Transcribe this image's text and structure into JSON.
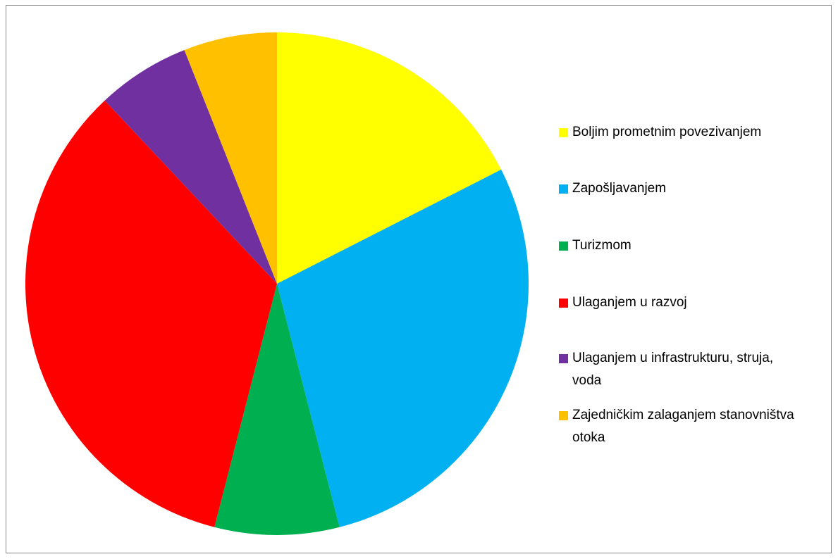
{
  "chart_data": {
    "type": "pie",
    "categories": [
      "Boljim prometnim povezivanjem",
      "Zapošljavanjem",
      "Turizmom",
      "Ulaganjem u razvoj",
      "Ulaganjem u infrastrukturu, struja, voda",
      "Zajedničkim zalaganjem stanovništva otoka"
    ],
    "values": [
      17.5,
      28.5,
      8,
      34,
      6,
      6
    ],
    "colors": [
      "#ffff00",
      "#00b0f0",
      "#00b050",
      "#ff0000",
      "#7030a0",
      "#ffc000"
    ],
    "legend": "right"
  }
}
